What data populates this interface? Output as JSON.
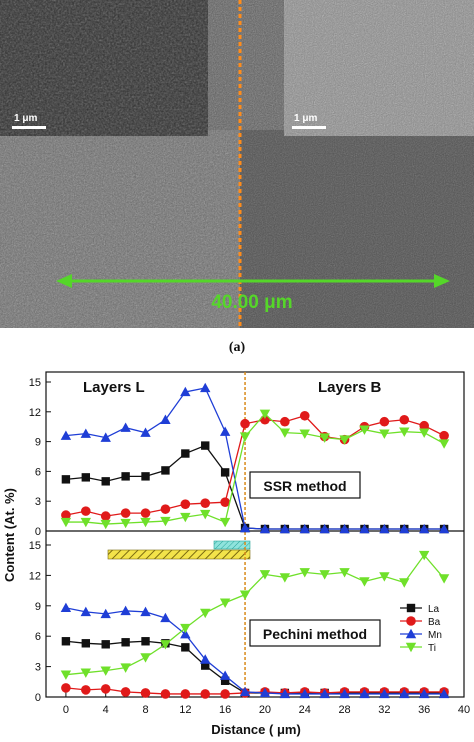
{
  "panel_a": {
    "label": "(a)",
    "scale_bar_left": "1 μm",
    "scale_bar_right": "1 μm",
    "measurement": "40.00 μm",
    "colors": {
      "measure": "#55d629",
      "boundary": "#ff8c1a"
    }
  },
  "chart_data": {
    "type": "line",
    "xlabel": "Distance ( μm)",
    "ylabel": "Content (At. %)",
    "xlim": [
      -2,
      40
    ],
    "x_ticks": [
      0,
      4,
      8,
      12,
      16,
      20,
      24,
      28,
      32,
      36,
      40
    ],
    "boundary_x": 18,
    "region_labels": [
      "Layers L",
      "Layers B"
    ],
    "legend": {
      "position": "right-middle",
      "entries": [
        "La",
        "Ba",
        "Mn",
        "Ti"
      ]
    },
    "legend_markers": [
      "square",
      "circle",
      "triangle-up",
      "triangle-down"
    ],
    "colors": {
      "La": "#111111",
      "Ba": "#e01a1a",
      "Mn": "#1f3ed6",
      "Ti": "#6fe02a",
      "boundary": "#d98a1a"
    },
    "panels": [
      {
        "name": "SSR method",
        "ylim": [
          0,
          15
        ],
        "y_ticks": [
          0,
          3,
          6,
          9,
          12,
          15
        ],
        "series": [
          {
            "name": "La",
            "x": [
              0,
              2,
              4,
              6,
              8,
              10,
              12,
              14,
              16,
              18,
              20,
              22,
              24,
              26,
              28,
              30,
              32,
              34,
              36,
              38
            ],
            "values": [
              5.2,
              5.4,
              5.0,
              5.5,
              5.5,
              6.1,
              7.8,
              8.6,
              5.9,
              0.3,
              0.2,
              0.2,
              0.2,
              0.2,
              0.2,
              0.2,
              0.2,
              0.2,
              0.2,
              0.2
            ]
          },
          {
            "name": "Ba",
            "x": [
              0,
              2,
              4,
              6,
              8,
              10,
              12,
              14,
              16,
              18,
              20,
              22,
              24,
              26,
              28,
              30,
              32,
              34,
              36,
              38
            ],
            "values": [
              1.6,
              2.0,
              1.5,
              1.8,
              1.8,
              2.2,
              2.7,
              2.8,
              2.9,
              10.8,
              11.2,
              11.0,
              11.6,
              9.5,
              9.2,
              10.5,
              11.0,
              11.2,
              10.6,
              9.6
            ]
          },
          {
            "name": "Mn",
            "x": [
              0,
              2,
              4,
              6,
              8,
              10,
              12,
              14,
              16,
              18,
              20,
              22,
              24,
              26,
              28,
              30,
              32,
              34,
              36,
              38
            ],
            "values": [
              9.6,
              9.8,
              9.4,
              10.4,
              9.9,
              11.2,
              14.0,
              14.4,
              10.0,
              0.3,
              0.2,
              0.2,
              0.2,
              0.2,
              0.2,
              0.2,
              0.2,
              0.2,
              0.2,
              0.2
            ]
          },
          {
            "name": "Ti",
            "x": [
              0,
              2,
              4,
              6,
              8,
              10,
              12,
              14,
              16,
              18,
              20,
              22,
              24,
              26,
              28,
              30,
              32,
              34,
              36,
              38
            ],
            "values": [
              0.9,
              0.9,
              0.7,
              0.8,
              0.9,
              1.0,
              1.4,
              1.7,
              0.9,
              9.5,
              11.8,
              9.9,
              9.8,
              9.4,
              9.2,
              10.2,
              9.8,
              10.0,
              9.9,
              8.8
            ]
          }
        ]
      },
      {
        "name": "Pechini method",
        "ylim": [
          0,
          15
        ],
        "y_ticks": [
          0,
          3,
          6,
          9,
          12,
          15
        ],
        "series": [
          {
            "name": "La",
            "x": [
              0,
              2,
              4,
              6,
              8,
              10,
              12,
              14,
              16,
              18,
              20,
              22,
              24,
              26,
              28,
              30,
              32,
              34,
              36,
              38
            ],
            "values": [
              5.5,
              5.3,
              5.2,
              5.4,
              5.5,
              5.3,
              4.9,
              3.1,
              1.6,
              0.4,
              0.4,
              0.4,
              0.4,
              0.4,
              0.4,
              0.4,
              0.4,
              0.4,
              0.4,
              0.4
            ]
          },
          {
            "name": "Ba",
            "x": [
              0,
              2,
              4,
              6,
              8,
              10,
              12,
              14,
              16,
              18,
              20,
              22,
              24,
              26,
              28,
              30,
              32,
              34,
              36,
              38
            ],
            "values": [
              0.9,
              0.7,
              0.8,
              0.5,
              0.4,
              0.3,
              0.3,
              0.3,
              0.3,
              0.4,
              0.5,
              0.4,
              0.5,
              0.4,
              0.5,
              0.5,
              0.5,
              0.5,
              0.5,
              0.5
            ]
          },
          {
            "name": "Mn",
            "x": [
              0,
              2,
              4,
              6,
              8,
              10,
              12,
              14,
              16,
              18,
              20,
              22,
              24,
              26,
              28,
              30,
              32,
              34,
              36,
              38
            ],
            "values": [
              8.8,
              8.4,
              8.2,
              8.5,
              8.4,
              7.8,
              6.2,
              3.7,
              2.1,
              0.5,
              0.4,
              0.3,
              0.3,
              0.3,
              0.3,
              0.3,
              0.3,
              0.3,
              0.3,
              0.3
            ]
          },
          {
            "name": "Ti",
            "x": [
              0,
              2,
              4,
              6,
              8,
              10,
              12,
              14,
              16,
              18,
              20,
              22,
              24,
              26,
              28,
              30,
              32,
              34,
              36,
              38
            ],
            "values": [
              2.2,
              2.4,
              2.6,
              2.9,
              3.9,
              5.2,
              6.8,
              8.3,
              9.3,
              10.1,
              12.1,
              11.8,
              12.3,
              12.1,
              12.3,
              11.4,
              11.9,
              11.3,
              14.0,
              11.7
            ]
          }
        ]
      }
    ]
  }
}
